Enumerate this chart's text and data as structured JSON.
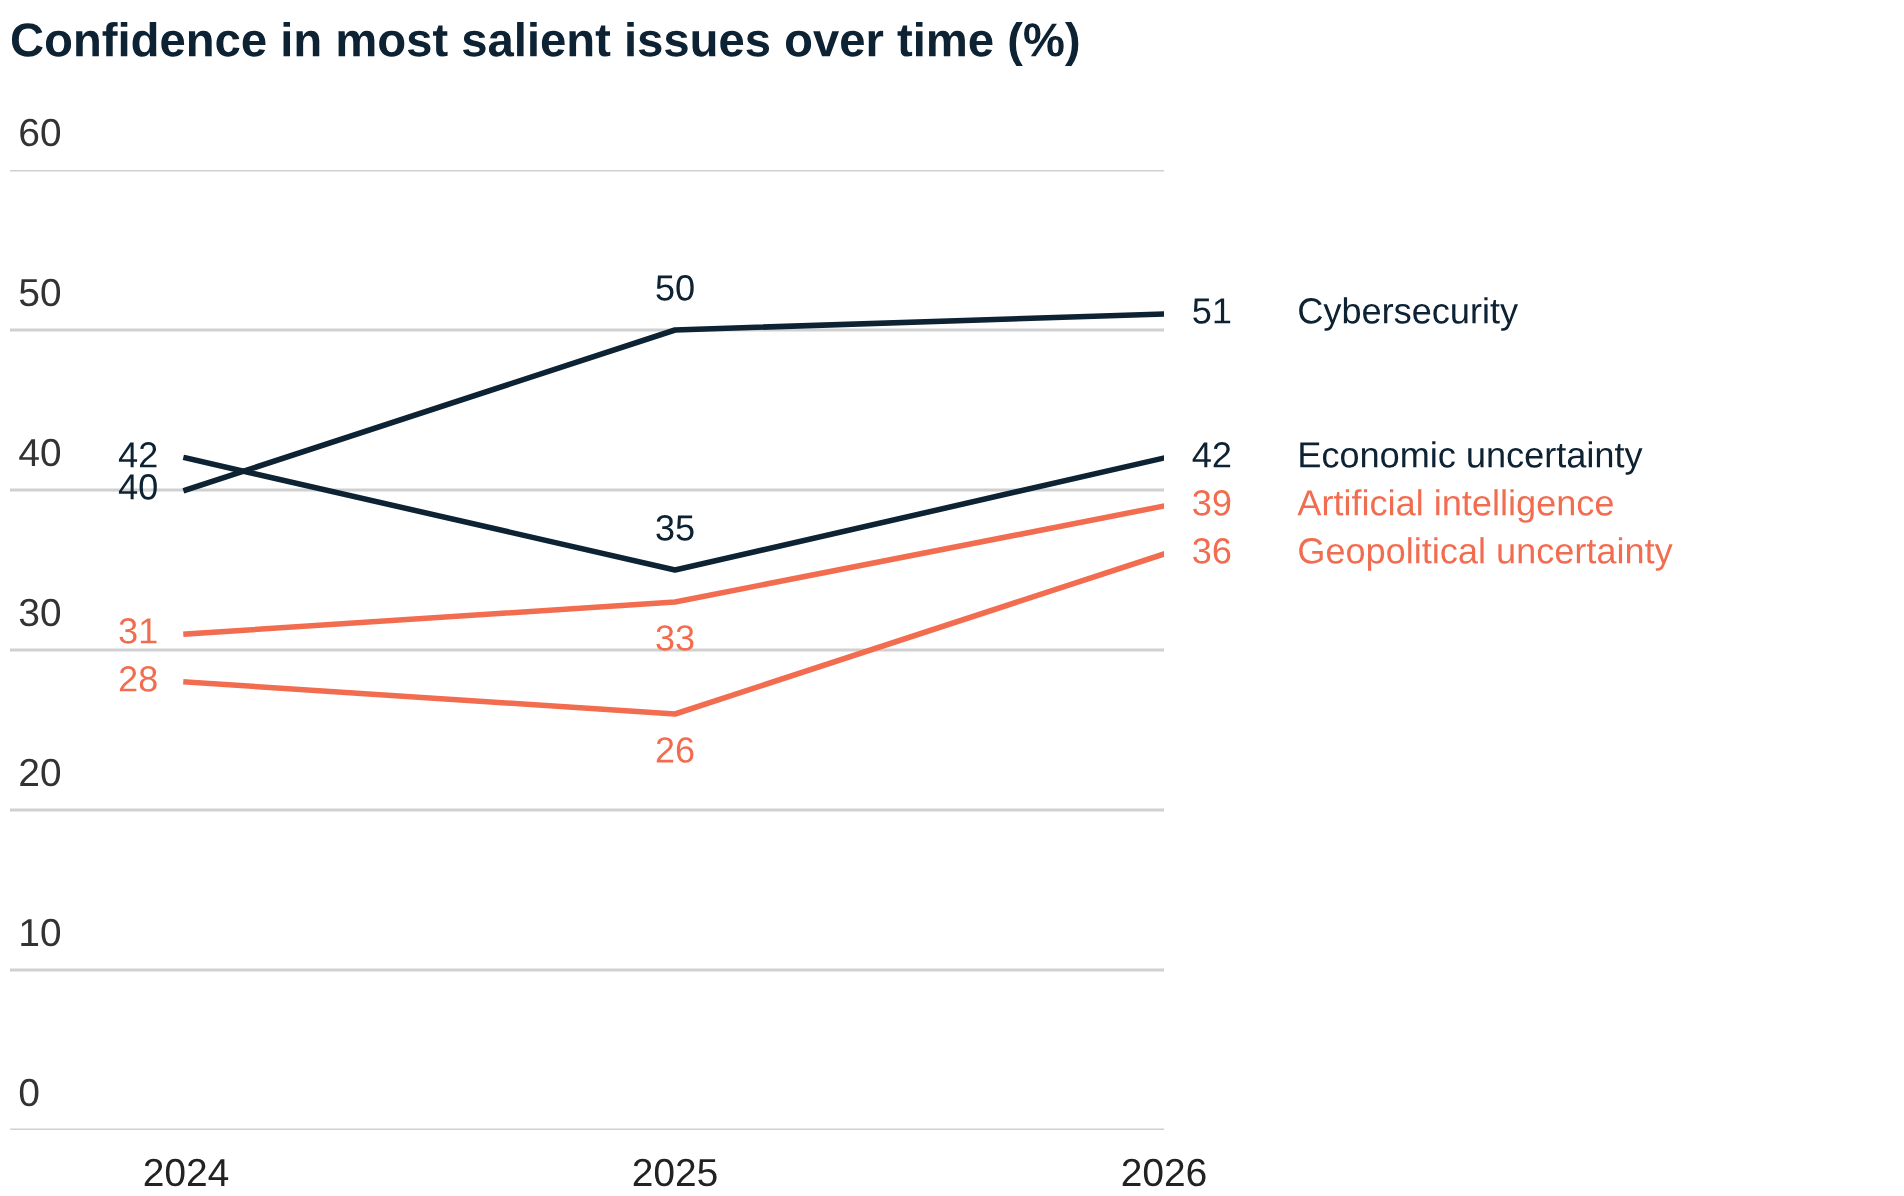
{
  "chart_data": {
    "type": "line",
    "title": "Confidence in most salient issues over time (%)",
    "categories": [
      "2024",
      "2025",
      "2026"
    ],
    "series": [
      {
        "name": "Cybersecurity",
        "color": "#0d2233",
        "values": [
          40,
          50,
          51
        ]
      },
      {
        "name": "Economic uncertainty",
        "color": "#0d2233",
        "values": [
          42,
          35,
          42
        ]
      },
      {
        "name": "Artificial intelligence",
        "color": "#f26c4f",
        "values": [
          31,
          33,
          39
        ]
      },
      {
        "name": "Geopolitical uncertainty",
        "color": "#f26c4f",
        "values": [
          28,
          26,
          36
        ]
      }
    ],
    "ylim": [
      0,
      60
    ],
    "yticks": [
      0,
      10,
      20,
      30,
      40,
      50,
      60
    ],
    "grid": "y",
    "data_labels": true,
    "marker": "none",
    "line_style": "solid"
  }
}
